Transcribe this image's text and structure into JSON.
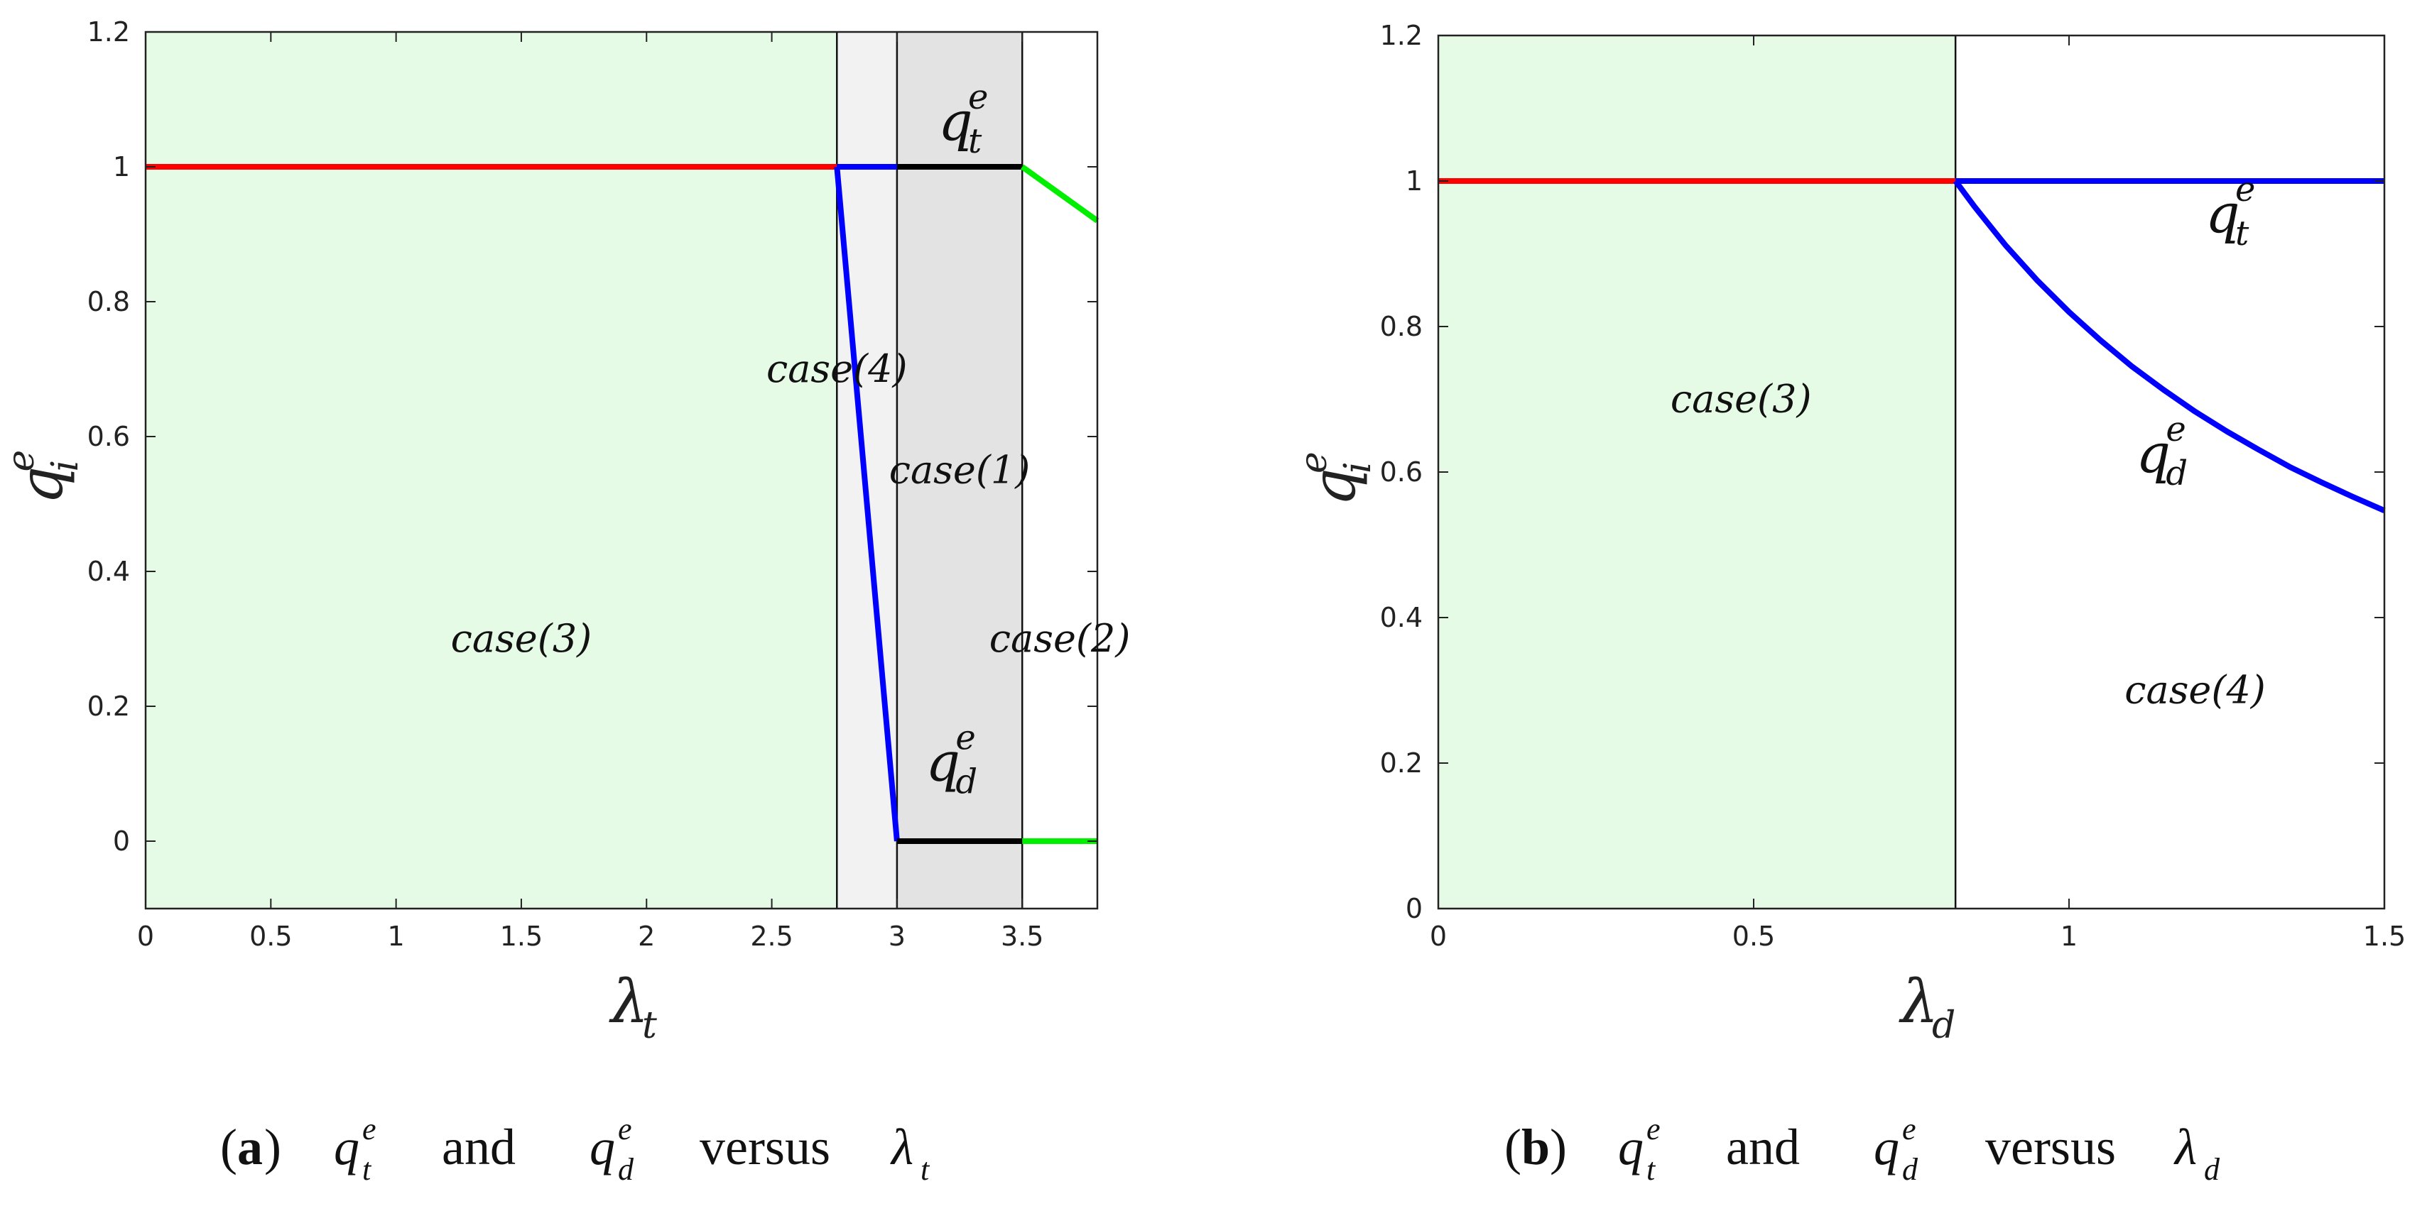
{
  "chart_data": [
    {
      "id": "a",
      "type": "line",
      "xlim": [
        0,
        3.8
      ],
      "ylim": [
        -0.1,
        1.2
      ],
      "xticks": [
        0,
        0.5,
        1,
        1.5,
        2,
        2.5,
        3,
        3.5
      ],
      "xtick_labels": [
        "0",
        "0.5",
        "1",
        "1.5",
        "2",
        "2.5",
        "3",
        "3.5"
      ],
      "yticks": [
        0,
        0.2,
        0.4,
        0.6,
        0.8,
        1,
        1.2
      ],
      "ytick_labels": [
        "0",
        "0.2",
        "0.4",
        "0.6",
        "0.8",
        "1",
        "1.2"
      ],
      "xlabel": "λ",
      "xlabel_sub": "t",
      "ylabel": "q",
      "ylabel_sub": "i",
      "ylabel_sup": "e",
      "grid": false,
      "regions": [
        {
          "x0": 0,
          "x1": 2.76,
          "color": "#e6fbe6",
          "label": "case(3)",
          "label_x": 1.5,
          "label_y": 0.3
        },
        {
          "x0": 2.76,
          "x1": 3.0,
          "color": "#f2f2f2",
          "label": "case(4)",
          "label_x": 2.76,
          "label_y": 0.7
        },
        {
          "x0": 3.0,
          "x1": 3.5,
          "color": "#e3e3e3",
          "label": "case(1)",
          "label_x": 3.25,
          "label_y": 0.55
        },
        {
          "x0": 3.5,
          "x1": 3.8,
          "color": "#ffffff",
          "label": "case(2)",
          "label_x": 3.65,
          "label_y": 0.3
        }
      ],
      "boundaries": [
        2.76,
        3.0,
        3.5
      ],
      "series": [
        {
          "color": "#ff0000",
          "x": [
            0,
            2.76
          ],
          "y": [
            1,
            1
          ]
        },
        {
          "color": "#0000ff",
          "x": [
            2.76,
            3.0
          ],
          "y": [
            1,
            1
          ]
        },
        {
          "color": "#0000ff",
          "x": [
            2.76,
            3.0
          ],
          "y": [
            1,
            0
          ]
        },
        {
          "color": "#000000",
          "x": [
            3.0,
            3.5
          ],
          "y": [
            1,
            1
          ]
        },
        {
          "color": "#000000",
          "x": [
            3.0,
            3.5
          ],
          "y": [
            0,
            0
          ]
        },
        {
          "color": "#00ee00",
          "x": [
            3.5,
            3.8
          ],
          "y": [
            1,
            0.92
          ]
        },
        {
          "color": "#00ee00",
          "x": [
            3.5,
            3.8
          ],
          "y": [
            0,
            0
          ]
        }
      ],
      "curve_labels": [
        {
          "base": "q",
          "sub": "t",
          "sup": "e",
          "x": 3.25,
          "y": 1.04
        },
        {
          "base": "q",
          "sub": "d",
          "sup": "e",
          "x": 3.2,
          "y": 0.09
        }
      ]
    },
    {
      "id": "b",
      "type": "line",
      "xlim": [
        0,
        1.5
      ],
      "ylim": [
        0,
        1.2
      ],
      "xticks": [
        0,
        0.5,
        1,
        1.5
      ],
      "xtick_labels": [
        "0",
        "0.5",
        "1",
        "1.5"
      ],
      "yticks": [
        0,
        0.2,
        0.4,
        0.6,
        0.8,
        1,
        1.2
      ],
      "ytick_labels": [
        "0",
        "0.2",
        "0.4",
        "0.6",
        "0.8",
        "1",
        "1.2"
      ],
      "xlabel": "λ",
      "xlabel_sub": "d",
      "ylabel": "q",
      "ylabel_sub": "i",
      "ylabel_sup": "e",
      "grid": false,
      "regions": [
        {
          "x0": 0,
          "x1": 0.82,
          "color": "#e6fbe6",
          "label": "case(3)",
          "label_x": 0.48,
          "label_y": 0.7
        },
        {
          "x0": 0.82,
          "x1": 1.5,
          "color": "#ffffff",
          "label": "case(4)",
          "label_x": 1.2,
          "label_y": 0.3
        }
      ],
      "boundaries": [
        0.82
      ],
      "series": [
        {
          "color": "#ff0000",
          "x": [
            0,
            0.82
          ],
          "y": [
            1,
            1
          ]
        },
        {
          "color": "#0000ff",
          "x": [
            0.82,
            1.5
          ],
          "y": [
            1,
            1
          ]
        },
        {
          "color": "#0000ff",
          "x": [
            0.82,
            0.85,
            0.9,
            0.95,
            1.0,
            1.05,
            1.1,
            1.15,
            1.2,
            1.25,
            1.3,
            1.35,
            1.4,
            1.45,
            1.5
          ],
          "y": [
            1,
            0.965,
            0.911,
            0.863,
            0.82,
            0.781,
            0.745,
            0.713,
            0.683,
            0.656,
            0.631,
            0.607,
            0.586,
            0.566,
            0.547
          ]
        }
      ],
      "curve_labels": [
        {
          "base": "q",
          "sub": "t",
          "sup": "e",
          "x": 1.25,
          "y": 0.93
        },
        {
          "base": "q",
          "sub": "d",
          "sup": "e",
          "x": 1.14,
          "y": 0.6
        }
      ]
    }
  ],
  "captions": [
    {
      "label": "a",
      "q1": "q",
      "q1_sub": "t",
      "q1_sup": "e",
      "and": "and",
      "q2": "q",
      "q2_sub": "d",
      "q2_sup": "e",
      "versus": "versus",
      "lam": "λ",
      "lam_sub": "t"
    },
    {
      "label": "b",
      "q1": "q",
      "q1_sub": "t",
      "q1_sup": "e",
      "and": "and",
      "q2": "q",
      "q2_sub": "d",
      "q2_sup": "e",
      "versus": "versus",
      "lam": "λ",
      "lam_sub": "d"
    }
  ]
}
